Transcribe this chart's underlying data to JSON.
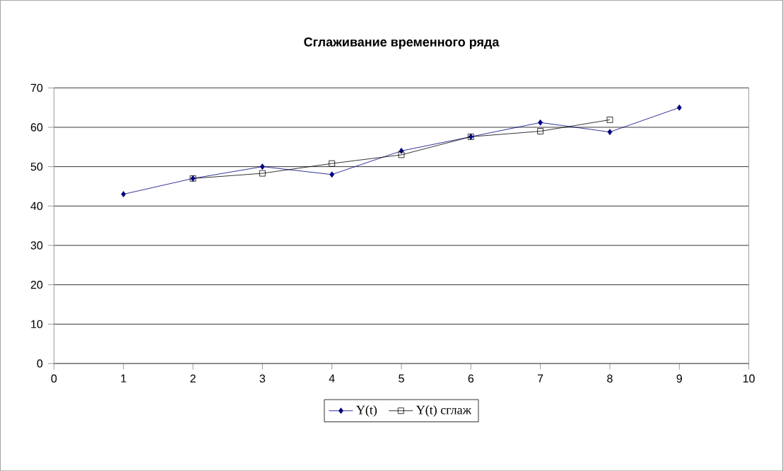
{
  "chart_data": {
    "type": "line",
    "title": "Сглаживание временного ряда",
    "xlim": [
      0,
      10
    ],
    "xticks": [
      0,
      1,
      2,
      3,
      4,
      5,
      6,
      7,
      8,
      9,
      10
    ],
    "ylim": [
      0,
      70
    ],
    "yticks": [
      0,
      10,
      20,
      30,
      40,
      50,
      60,
      70
    ],
    "grid": "y",
    "legend": "bottom",
    "line_style": "solid",
    "series": [
      {
        "name": "Y(t)",
        "color": "#000080",
        "marker": "diamond",
        "x": [
          1,
          2,
          3,
          4,
          5,
          6,
          7,
          8,
          9
        ],
        "values": [
          43,
          47,
          50,
          48,
          54,
          57.6,
          61.2,
          58.8,
          65
        ]
      },
      {
        "name": "Y(t) сглаж",
        "color": "#000000",
        "marker": "square",
        "x": [
          2,
          3,
          4,
          5,
          6,
          7,
          8
        ],
        "values": [
          47,
          48.3,
          50.8,
          53,
          57.6,
          59,
          61.9
        ]
      }
    ]
  }
}
